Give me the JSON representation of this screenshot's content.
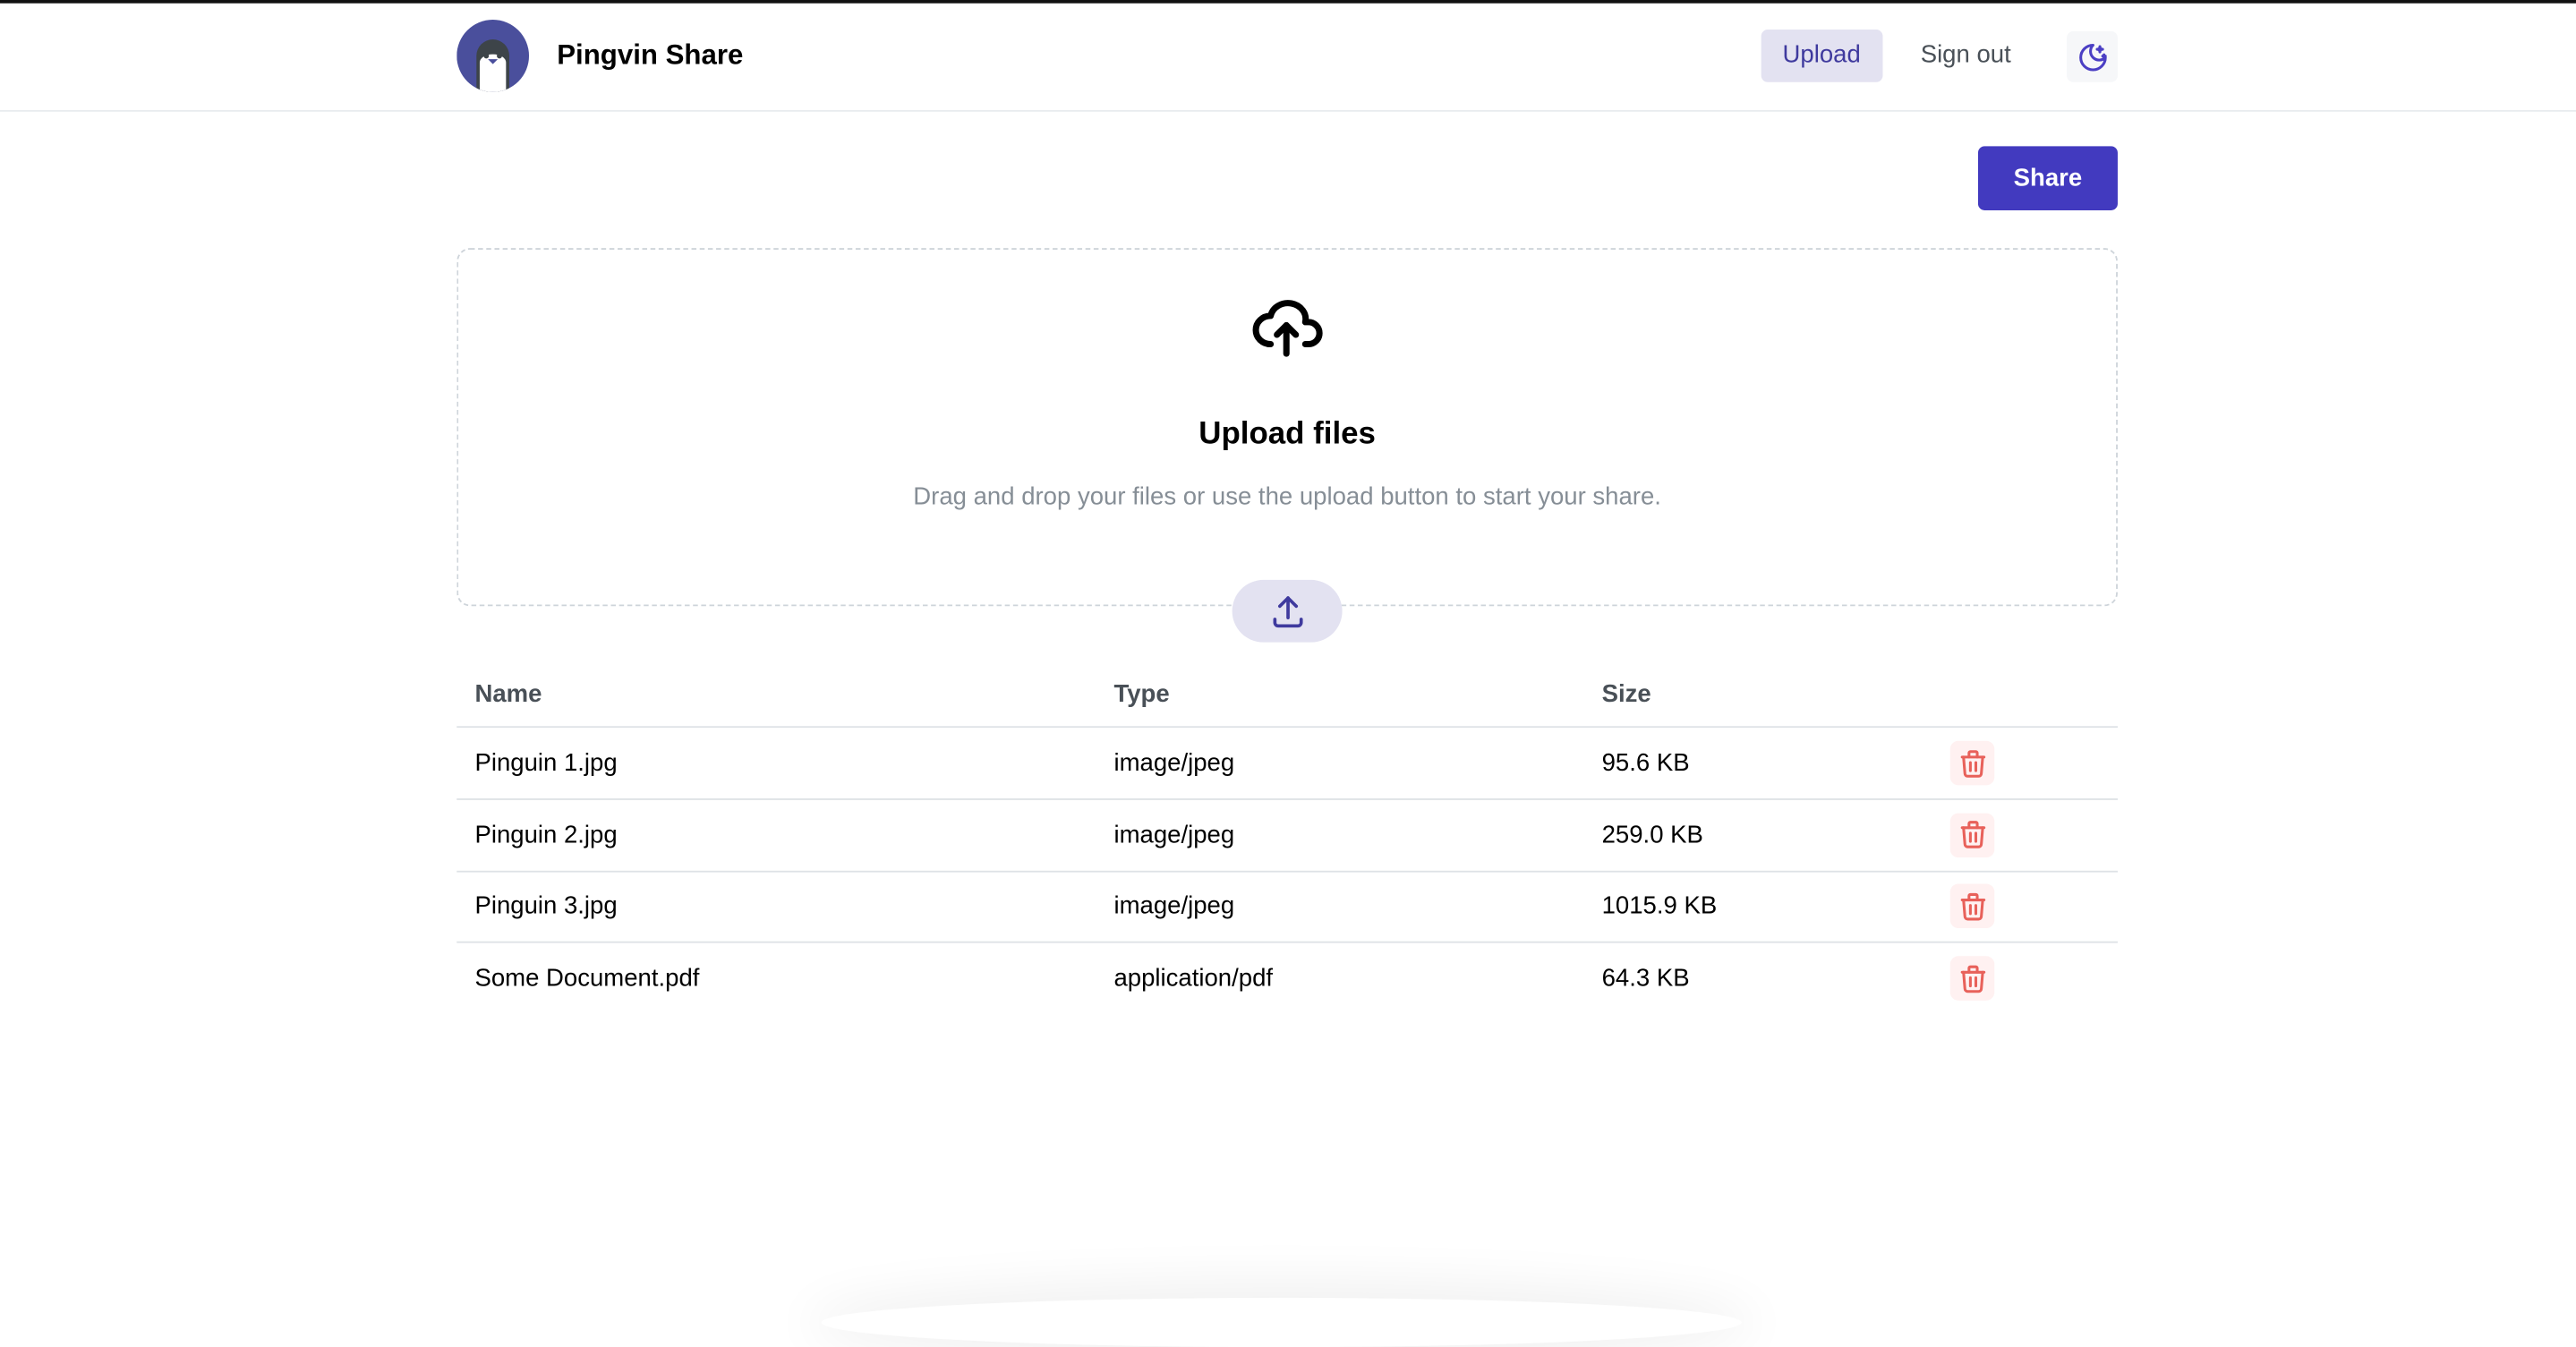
{
  "header": {
    "app_name": "Pingvin Share",
    "nav": {
      "upload": "Upload",
      "sign_out": "Sign out"
    },
    "theme_toggle_icon": "moon-stars-icon"
  },
  "actions": {
    "share": "Share"
  },
  "dropzone": {
    "title": "Upload files",
    "subtitle": "Drag and drop your files or use the upload button to start your share.",
    "icon": "cloud-upload-icon",
    "button_icon": "upload-icon"
  },
  "table": {
    "columns": [
      "Name",
      "Type",
      "Size"
    ],
    "rows": [
      {
        "name": "Pinguin 1.jpg",
        "type": "image/jpeg",
        "size": "95.6 KB"
      },
      {
        "name": "Pinguin 2.jpg",
        "type": "image/jpeg",
        "size": "259.0 KB"
      },
      {
        "name": "Pinguin 3.jpg",
        "type": "image/jpeg",
        "size": "1015.9 KB"
      },
      {
        "name": "Some Document.pdf",
        "type": "application/pdf",
        "size": "64.3 KB"
      }
    ],
    "delete_icon": "trash-icon"
  },
  "colors": {
    "accent": "#423abf",
    "accent_light": "#e3e2f1",
    "danger": "#e8615a"
  }
}
